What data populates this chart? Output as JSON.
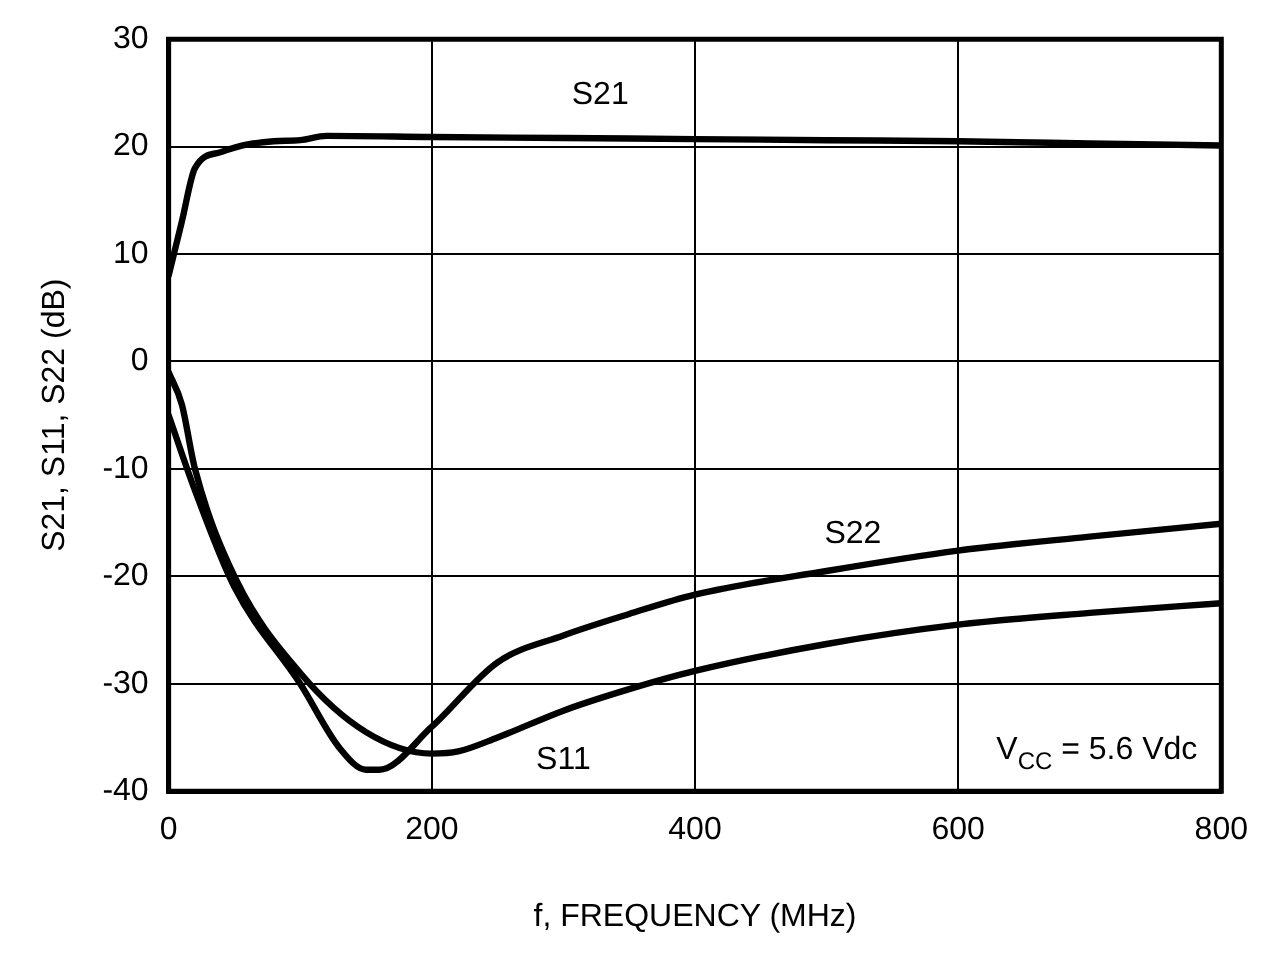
{
  "chart_data": {
    "type": "line",
    "xlabel": "f, FREQUENCY (MHz)",
    "ylabel": "S21, S11, S22 (dB)",
    "xlim": [
      0,
      800
    ],
    "xticks": [
      0,
      200,
      400,
      600,
      800
    ],
    "ylim": [
      -40,
      30
    ],
    "yticks": [
      -40,
      -30,
      -20,
      -10,
      0,
      10,
      20,
      30
    ],
    "grid": true,
    "legend": false,
    "marker": "none",
    "line_style": "solid",
    "series": [
      {
        "name": "S21",
        "color": "#000000",
        "x": [
          0,
          10,
          20,
          40,
          60,
          80,
          100,
          120,
          200,
          300,
          400,
          500,
          600,
          700,
          800
        ],
        "values": [
          8,
          13,
          18,
          19.5,
          20.2,
          20.5,
          20.6,
          21,
          20.9,
          20.8,
          20.7,
          20.6,
          20.5,
          20.3,
          20.1
        ]
      },
      {
        "name": "S11",
        "color": "#000000",
        "x": [
          0,
          10,
          20,
          50,
          100,
          150,
          200,
          220,
          250,
          300,
          350,
          400,
          500,
          600,
          700,
          800
        ],
        "values": [
          -1,
          -4,
          -10,
          -20,
          -29,
          -34.5,
          -36.5,
          -36.3,
          -35,
          -32.5,
          -30.5,
          -28.8,
          -26.3,
          -24.5,
          -23.4,
          -22.5
        ]
      },
      {
        "name": "S22",
        "color": "#000000",
        "x": [
          0,
          20,
          50,
          100,
          130,
          150,
          160,
          200,
          250,
          300,
          350,
          400,
          500,
          600,
          700,
          800
        ],
        "values": [
          -5,
          -12,
          -21,
          -30,
          -36,
          -38,
          -38,
          -34,
          -28,
          -25.5,
          -23.5,
          -21.7,
          -19.5,
          -17.6,
          -16.3,
          -15.1
        ]
      }
    ],
    "annotations": [
      "V$_{CC}$ = 5.6 Vdc"
    ]
  }
}
